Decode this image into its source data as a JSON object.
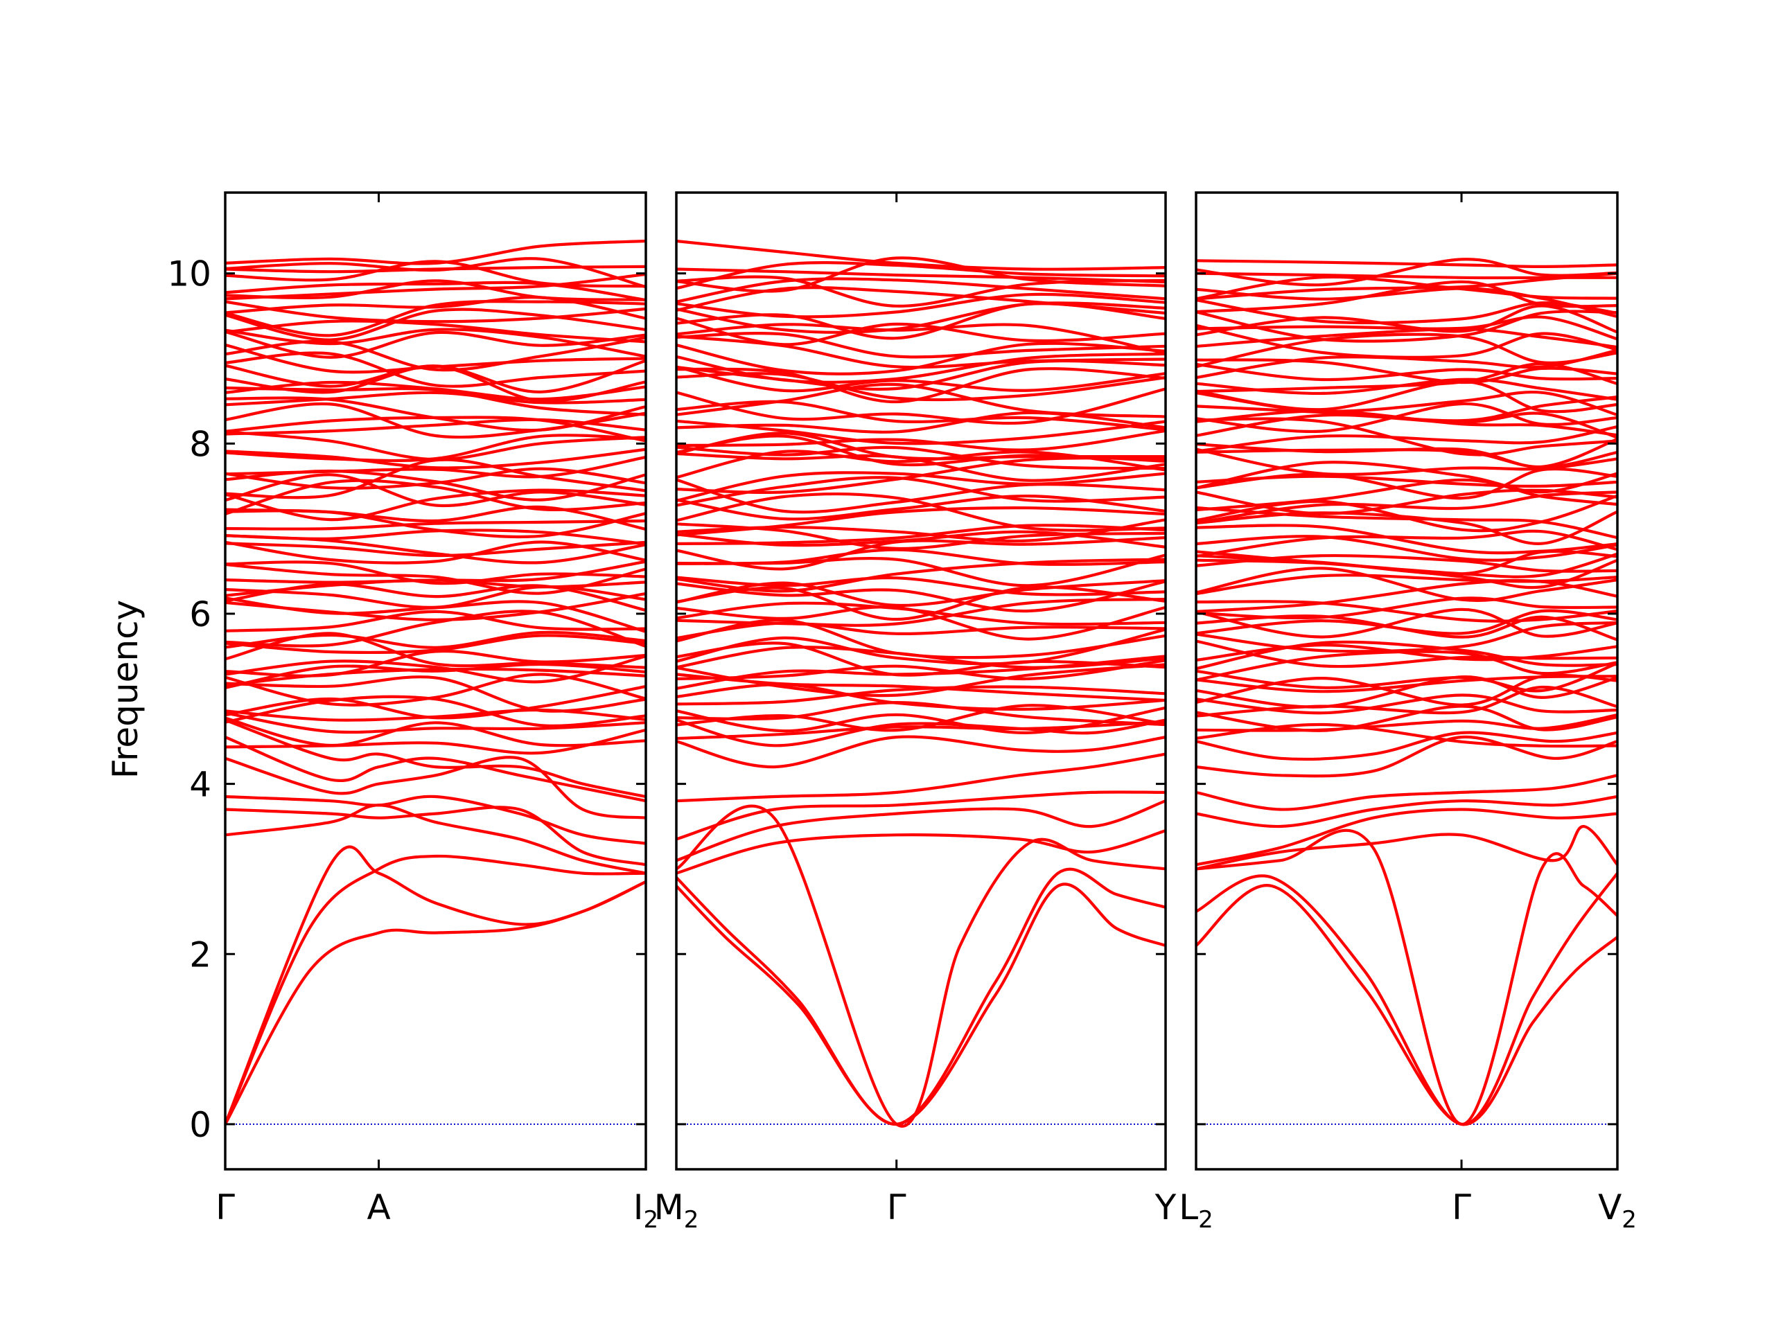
{
  "chart_data": {
    "type": "line",
    "title": "",
    "ylabel": "Frequency",
    "ylim": [
      -0.53,
      10.95
    ],
    "yticks": [
      0,
      2,
      4,
      6,
      8,
      10
    ],
    "colors": {
      "bands": "#ff0000",
      "zero_line": "#0000cc",
      "axes": "#000000"
    },
    "grid": false,
    "panels": [
      {
        "name": "panel-1",
        "xticks": [
          {
            "pos": 0.0,
            "label": "Γ",
            "sub": ""
          },
          {
            "pos": 0.365,
            "label": "A",
            "sub": ""
          },
          {
            "pos": 1.0,
            "label": "I",
            "sub": "2"
          }
        ],
        "acoustic": [
          {
            "x": [
              0,
              0.25,
              0.365,
              0.5,
              0.7,
              0.85,
              1.0
            ],
            "y": [
              0,
              3.05,
              2.95,
              2.6,
              2.35,
              2.5,
              2.85
            ]
          },
          {
            "x": [
              0,
              0.2,
              0.365,
              0.5,
              0.7,
              0.85,
              1.0
            ],
            "y": [
              0,
              2.3,
              3.0,
              3.15,
              3.05,
              2.95,
              2.95
            ]
          },
          {
            "x": [
              0,
              0.2,
              0.365,
              0.5,
              0.7,
              0.85,
              1.0
            ],
            "y": [
              0,
              1.8,
              2.25,
              2.25,
              2.3,
              2.5,
              2.85
            ]
          }
        ],
        "bands_fixed": [
          {
            "x": [
              0,
              0.25,
              0.365,
              0.5,
              0.7,
              0.85,
              1.0
            ],
            "y": [
              3.4,
              3.55,
              3.75,
              3.55,
              3.35,
              3.1,
              2.95
            ]
          },
          {
            "x": [
              0,
              0.25,
              0.365,
              0.5,
              0.7,
              0.85,
              1.0
            ],
            "y": [
              3.7,
              3.65,
              3.6,
              3.65,
              3.7,
              3.2,
              3.05
            ]
          },
          {
            "x": [
              0,
              0.25,
              0.365,
              0.5,
              0.7,
              0.85,
              1.0
            ],
            "y": [
              3.85,
              3.8,
              3.75,
              3.85,
              3.65,
              3.4,
              3.3
            ]
          },
          {
            "x": [
              0,
              0.25,
              0.365,
              0.5,
              0.7,
              0.85,
              1.0
            ],
            "y": [
              4.3,
              3.9,
              4.0,
              4.1,
              4.3,
              3.7,
              3.6
            ]
          },
          {
            "x": [
              0,
              0.25,
              0.365,
              0.5,
              0.7,
              0.85,
              1.0
            ],
            "y": [
              4.55,
              4.05,
              4.2,
              4.3,
              4.1,
              3.95,
              3.8
            ]
          },
          {
            "x": [
              0,
              0.25,
              0.365,
              0.5,
              0.7,
              0.85,
              1.0
            ],
            "y": [
              4.75,
              4.3,
              4.35,
              4.2,
              4.2,
              4.0,
              3.85
            ]
          }
        ],
        "bands_x": [
          0,
          0.25,
          0.5,
          0.75,
          1.0
        ],
        "bands_random_range": [
          4.5,
          10.1
        ],
        "bands_random_count": 66,
        "top_bands": [
          {
            "x": [
              0,
              0.25,
              0.5,
              0.75,
              1.0
            ],
            "y": [
              10.12,
              10.17,
              10.12,
              10.32,
              10.38
            ]
          },
          {
            "x": [
              0,
              0.25,
              0.5,
              0.75,
              1.0
            ],
            "y": [
              10.05,
              10.02,
              10.05,
              10.07,
              10.08
            ]
          }
        ],
        "seed": 11
      },
      {
        "name": "panel-2",
        "xticks": [
          {
            "pos": 0.0,
            "label": "M",
            "sub": "2"
          },
          {
            "pos": 0.45,
            "label": "Γ",
            "sub": ""
          },
          {
            "pos": 1.0,
            "label": "Y",
            "sub": ""
          }
        ],
        "acoustic": [
          {
            "x": [
              0,
              0.1,
              0.25,
              0.45,
              0.65,
              0.78,
              0.9,
              1.0
            ],
            "y": [
              2.8,
              2.2,
              1.4,
              0,
              1.5,
              2.8,
              2.3,
              2.1
            ]
          },
          {
            "x": [
              0,
              0.1,
              0.25,
              0.45,
              0.65,
              0.78,
              0.9,
              1.0
            ],
            "y": [
              2.9,
              2.3,
              1.45,
              0,
              1.65,
              2.95,
              2.7,
              2.55
            ]
          },
          {
            "x": [
              0,
              0.2,
              0.45,
              0.58,
              0.72,
              0.85,
              1.0
            ],
            "y": [
              3.0,
              3.6,
              0,
              2.1,
              3.3,
              3.1,
              3.0
            ]
          }
        ],
        "bands_fixed": [
          {
            "x": [
              0,
              0.2,
              0.45,
              0.7,
              0.85,
              1.0
            ],
            "y": [
              2.95,
              3.3,
              3.4,
              3.35,
              3.2,
              3.45
            ]
          },
          {
            "x": [
              0,
              0.2,
              0.45,
              0.7,
              0.85,
              1.0
            ],
            "y": [
              3.1,
              3.5,
              3.65,
              3.7,
              3.5,
              3.8
            ]
          },
          {
            "x": [
              0,
              0.2,
              0.45,
              0.7,
              0.85,
              1.0
            ],
            "y": [
              3.35,
              3.7,
              3.75,
              3.85,
              3.9,
              3.9
            ]
          },
          {
            "x": [
              0,
              0.2,
              0.45,
              0.7,
              0.85,
              1.0
            ],
            "y": [
              3.8,
              3.85,
              3.9,
              4.1,
              4.2,
              4.35
            ]
          },
          {
            "x": [
              0,
              0.2,
              0.45,
              0.7,
              0.85,
              1.0
            ],
            "y": [
              4.5,
              4.2,
              4.55,
              4.4,
              4.4,
              4.55
            ]
          },
          {
            "x": [
              0,
              0.2,
              0.45,
              0.7,
              0.85,
              1.0
            ],
            "y": [
              4.75,
              4.45,
              4.7,
              4.65,
              4.6,
              4.75
            ]
          }
        ],
        "bands_x": [
          0,
          0.22,
          0.45,
          0.72,
          1.0
        ],
        "bands_random_range": [
          4.6,
          10.05
        ],
        "bands_random_count": 66,
        "top_bands": [
          {
            "x": [
              0,
              0.22,
              0.45,
              0.72,
              1.0
            ],
            "y": [
              10.38,
              10.25,
              10.12,
              10.05,
              10.07
            ]
          },
          {
            "x": [
              0,
              0.22,
              0.45,
              0.72,
              1.0
            ],
            "y": [
              10.05,
              10.02,
              9.98,
              9.95,
              9.9
            ]
          }
        ],
        "seed": 23
      },
      {
        "name": "panel-3",
        "xticks": [
          {
            "pos": 0.0,
            "label": "L",
            "sub": "2"
          },
          {
            "pos": 0.63,
            "label": "Γ",
            "sub": ""
          },
          {
            "pos": 1.0,
            "label": "V",
            "sub": "2"
          }
        ],
        "acoustic": [
          {
            "x": [
              0,
              0.18,
              0.4,
              0.63,
              0.8,
              0.9,
              1.0
            ],
            "y": [
              2.1,
              2.8,
              1.6,
              0,
              1.2,
              1.8,
              2.2
            ]
          },
          {
            "x": [
              0,
              0.18,
              0.4,
              0.63,
              0.8,
              0.9,
              1.0
            ],
            "y": [
              2.5,
              2.9,
              1.8,
              0,
              1.5,
              2.3,
              2.95
            ]
          },
          {
            "x": [
              0,
              0.2,
              0.42,
              0.63,
              0.82,
              0.92,
              1.0
            ],
            "y": [
              3.0,
              3.1,
              3.25,
              0,
              3.0,
              2.8,
              2.45
            ]
          }
        ],
        "bands_fixed": [
          {
            "x": [
              0,
              0.2,
              0.42,
              0.63,
              0.85,
              0.92,
              1.0
            ],
            "y": [
              3.0,
              3.2,
              3.3,
              3.4,
              3.1,
              3.5,
              3.05
            ]
          },
          {
            "x": [
              0,
              0.2,
              0.42,
              0.63,
              0.85,
              1.0
            ],
            "y": [
              3.05,
              3.25,
              3.6,
              3.7,
              3.6,
              3.65
            ]
          },
          {
            "x": [
              0,
              0.2,
              0.42,
              0.63,
              0.85,
              1.0
            ],
            "y": [
              3.65,
              3.5,
              3.7,
              3.8,
              3.75,
              3.85
            ]
          },
          {
            "x": [
              0,
              0.2,
              0.42,
              0.63,
              0.85,
              1.0
            ],
            "y": [
              3.9,
              3.7,
              3.85,
              3.9,
              3.95,
              4.1
            ]
          },
          {
            "x": [
              0,
              0.2,
              0.42,
              0.63,
              0.85,
              1.0
            ],
            "y": [
              4.2,
              4.1,
              4.15,
              4.55,
              4.3,
              4.5
            ]
          },
          {
            "x": [
              0,
              0.2,
              0.42,
              0.63,
              0.85,
              1.0
            ],
            "y": [
              4.5,
              4.3,
              4.35,
              4.6,
              4.5,
              4.6
            ]
          }
        ],
        "bands_x": [
          0,
          0.3,
          0.63,
          0.82,
          1.0
        ],
        "bands_random_range": [
          4.6,
          10.0
        ],
        "bands_random_count": 66,
        "top_bands": [
          {
            "x": [
              0,
              0.3,
              0.63,
              0.82,
              1.0
            ],
            "y": [
              10.15,
              10.13,
              10.1,
              10.08,
              10.1
            ]
          },
          {
            "x": [
              0,
              0.3,
              0.63,
              0.82,
              1.0
            ],
            "y": [
              10.0,
              9.98,
              9.95,
              9.95,
              9.95
            ]
          }
        ],
        "seed": 37
      }
    ]
  }
}
